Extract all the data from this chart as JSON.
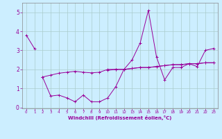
{
  "x": [
    0,
    1,
    2,
    3,
    4,
    5,
    6,
    7,
    8,
    9,
    10,
    11,
    12,
    13,
    14,
    15,
    16,
    17,
    18,
    19,
    20,
    21,
    22,
    23
  ],
  "series": [
    [
      3.8,
      3.1,
      null,
      null,
      null,
      null,
      null,
      null,
      null,
      null,
      null,
      null,
      null,
      null,
      null,
      null,
      null,
      null,
      null,
      null,
      null,
      null,
      null,
      null
    ],
    [
      null,
      null,
      1.6,
      0.6,
      0.65,
      0.5,
      0.3,
      0.65,
      0.3,
      0.3,
      0.5,
      1.1,
      2.0,
      2.5,
      3.4,
      5.1,
      2.65,
      1.45,
      2.1,
      2.1,
      2.3,
      2.15,
      3.0,
      3.1
    ],
    [
      null,
      null,
      1.6,
      1.7,
      1.8,
      1.85,
      1.9,
      1.85,
      1.82,
      1.85,
      2.0,
      2.0,
      2.0,
      2.05,
      2.1,
      2.1,
      2.15,
      2.2,
      2.25,
      2.25,
      2.3,
      2.3,
      2.35,
      2.35
    ],
    [
      null,
      null,
      null,
      null,
      null,
      null,
      null,
      null,
      null,
      null,
      1.95,
      2.0,
      2.0,
      2.05,
      2.1,
      2.1,
      2.15,
      2.2,
      2.25,
      2.25,
      2.3,
      2.3,
      2.35,
      2.35
    ]
  ],
  "line_color": "#990099",
  "bg_color": "#cceeff",
  "grid_color": "#aacccc",
  "xlabel": "Windchill (Refroidissement éolien,°C)",
  "xlim": [
    -0.5,
    23.5
  ],
  "ylim": [
    -0.05,
    5.5
  ],
  "yticks": [
    0,
    1,
    2,
    3,
    4,
    5
  ],
  "xticks": [
    0,
    1,
    2,
    3,
    4,
    5,
    6,
    7,
    8,
    9,
    10,
    11,
    12,
    13,
    14,
    15,
    16,
    17,
    18,
    19,
    20,
    21,
    22,
    23
  ]
}
